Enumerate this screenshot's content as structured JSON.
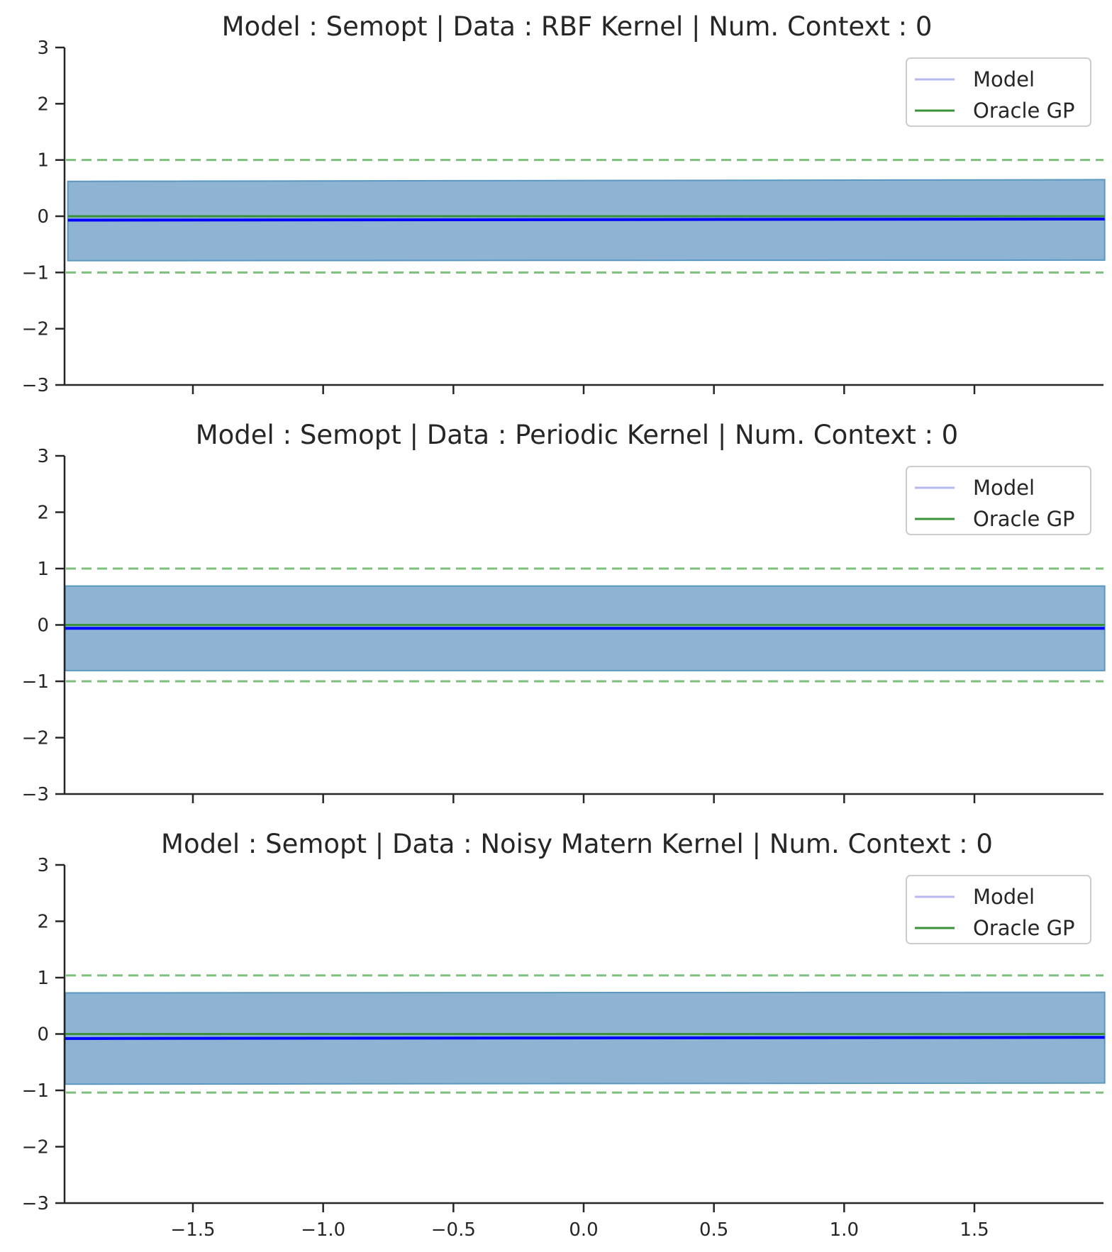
{
  "chart_data": [
    {
      "type": "line",
      "title": "Model : Semopt | Data : RBF Kernel | Num. Context : 0",
      "xlabel": "",
      "ylabel": "",
      "xlim": [
        -1.99,
        2.0
      ],
      "ylim": [
        -3,
        3
      ],
      "yticks": [
        "3",
        "2",
        "1",
        "0",
        "−1",
        "−2",
        "−3"
      ],
      "xticks": [],
      "legend": {
        "placement": "top-right",
        "entries": [
          "Model",
          "Oracle GP"
        ]
      },
      "series": [
        {
          "name": "Model",
          "color": "#0000ff",
          "x": [
            -1.98,
            2.0
          ],
          "y": [
            -0.07,
            -0.05
          ]
        },
        {
          "name": "Oracle GP",
          "color": "#3a923a",
          "x": [
            -1.98,
            2.0
          ],
          "y": [
            0.0,
            0.0
          ]
        }
      ],
      "band": {
        "color": "#8fb4d3",
        "edge": "#5a98c2",
        "x": [
          -1.98,
          2.0
        ],
        "upper": [
          0.62,
          0.65
        ],
        "lower": [
          -0.79,
          -0.78
        ]
      },
      "reference_lines": {
        "color": "#7cc07c",
        "style": "dashed",
        "y": [
          1.0,
          -1.0
        ]
      }
    },
    {
      "type": "line",
      "title": "Model : Semopt | Data : Periodic Kernel | Num. Context : 0",
      "xlabel": "",
      "ylabel": "",
      "xlim": [
        -1.99,
        2.0
      ],
      "ylim": [
        -3,
        3
      ],
      "yticks": [
        "3",
        "2",
        "1",
        "0",
        "−1",
        "−2",
        "−3"
      ],
      "xticks": [],
      "legend": {
        "placement": "top-right",
        "entries": [
          "Model",
          "Oracle GP"
        ]
      },
      "series": [
        {
          "name": "Model",
          "color": "#0000ff",
          "x": [
            -1.99,
            2.0
          ],
          "y": [
            -0.06,
            -0.06
          ]
        },
        {
          "name": "Oracle GP",
          "color": "#3a923a",
          "x": [
            -1.99,
            2.0
          ],
          "y": [
            0.0,
            0.0
          ]
        }
      ],
      "band": {
        "color": "#8fb4d3",
        "edge": "#5a98c2",
        "x": [
          -1.99,
          2.0
        ],
        "upper": [
          0.69,
          0.69
        ],
        "lower": [
          -0.81,
          -0.81
        ]
      },
      "reference_lines": {
        "color": "#7cc07c",
        "style": "dashed",
        "y": [
          1.0,
          -1.0
        ]
      }
    },
    {
      "type": "line",
      "title": "Model : Semopt | Data : Noisy Matern Kernel | Num. Context : 0",
      "xlabel": "",
      "ylabel": "",
      "xlim": [
        -1.99,
        2.0
      ],
      "ylim": [
        -3,
        3
      ],
      "yticks": [
        "3",
        "2",
        "1",
        "0",
        "−1",
        "−2",
        "−3"
      ],
      "xticks": [
        "−1.5",
        "−1.0",
        "−0.5",
        "0.0",
        "0.5",
        "1.0",
        "1.5"
      ],
      "legend": {
        "placement": "top-right",
        "entries": [
          "Model",
          "Oracle GP"
        ]
      },
      "series": [
        {
          "name": "Model",
          "color": "#0000ff",
          "x": [
            -1.99,
            2.0
          ],
          "y": [
            -0.08,
            -0.06
          ]
        },
        {
          "name": "Oracle GP",
          "color": "#3a923a",
          "x": [
            -1.99,
            2.0
          ],
          "y": [
            0.0,
            0.0
          ]
        }
      ],
      "band": {
        "color": "#8fb4d3",
        "edge": "#5a98c2",
        "x": [
          -1.99,
          2.0
        ],
        "upper": [
          0.73,
          0.74
        ],
        "lower": [
          -0.89,
          -0.87
        ]
      },
      "reference_lines": {
        "color": "#7cc07c",
        "style": "dashed",
        "y": [
          1.04,
          -1.04
        ]
      }
    }
  ],
  "xtick_values": [
    -1.5,
    -1.0,
    -0.5,
    0.0,
    0.5,
    1.0,
    1.5
  ],
  "ytick_values": [
    3,
    2,
    1,
    0,
    -1,
    -2,
    -3
  ],
  "colors": {
    "axis": "#262626",
    "text": "#262626",
    "legend_border": "#cccccc",
    "model_legend_line": "#b8b8f0"
  }
}
